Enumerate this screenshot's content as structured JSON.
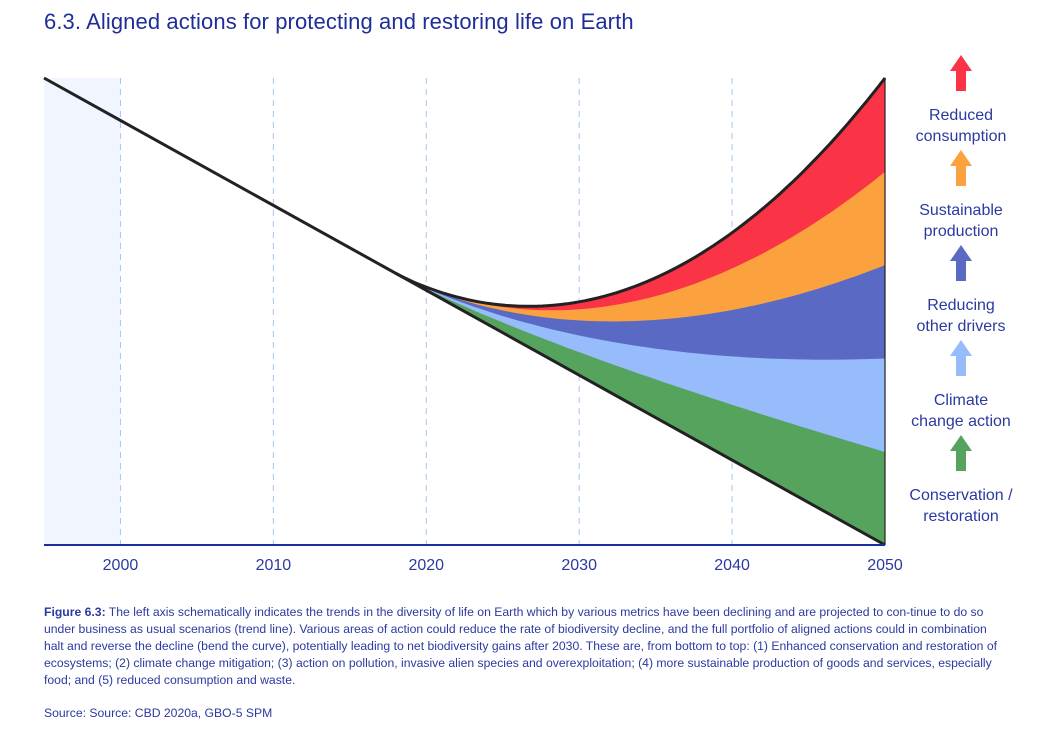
{
  "title": "6.3. Aligned actions for protecting and restoring life on Earth",
  "chart_data": {
    "type": "area",
    "x_ticks": [
      2000,
      2010,
      2020,
      2030,
      2040,
      2050
    ],
    "xlim": [
      1995,
      2050
    ],
    "ylim": [
      0,
      1
    ],
    "gridlines": "vertical dashed",
    "shaded_region": [
      1995,
      2000
    ],
    "trend_line": {
      "start": [
        1995,
        1.0
      ],
      "end": [
        2050,
        0.0
      ]
    },
    "bend_point": 2018,
    "series": [
      {
        "name": "Conservation / restoration",
        "color": "#56a35e",
        "end_value": 0.2
      },
      {
        "name": "Climate change action",
        "color": "#97bcfb",
        "end_value": 0.4
      },
      {
        "name": "Reducing other drivers",
        "color": "#5a6ac4",
        "end_value": 0.6
      },
      {
        "name": "Sustainable production",
        "color": "#fba23f",
        "end_value": 0.8
      },
      {
        "name": "Reduced consumption",
        "color": "#fb3346",
        "end_value": 1.0
      }
    ]
  },
  "legend": [
    {
      "line1": "Reduced",
      "line2": "consumption",
      "color": "#fb3346",
      "icon": "arrow-up-icon"
    },
    {
      "line1": "Sustainable",
      "line2": "production",
      "color": "#fba23f",
      "icon": "arrow-up-icon"
    },
    {
      "line1": "Reducing",
      "line2": "other drivers",
      "color": "#5a6ac4",
      "icon": "arrow-up-icon"
    },
    {
      "line1": "Climate",
      "line2": "change action",
      "color": "#97bcfb",
      "icon": "arrow-up-icon"
    },
    {
      "line1": "Conservation /",
      "line2": "restoration",
      "color": "#56a35e",
      "icon": "arrow-up-icon"
    }
  ],
  "caption": {
    "label": "Figure 6.3:",
    "text": " The left axis schematically indicates the trends in the diversity of life on Earth which by various metrics have been declining and are projected to con-tinue to do so under business as usual scenarios (trend line). Various areas of action could reduce the rate of biodiversity decline, and the full portfolio of aligned actions could in combination halt and reverse the decline (bend the curve), potentially leading to net biodiversity gains after 2030. These are, from bottom to top: (1) Enhanced conservation and restoration of ecosystems; (2) climate change mitigation; (3) action on pollution, invasive alien species and overexploitation; (4) more sustainable production of goods and services, especially food; and (5) reduced consumption and waste."
  },
  "source": "Source: Source: CBD 2020a, GBO-5 SPM"
}
